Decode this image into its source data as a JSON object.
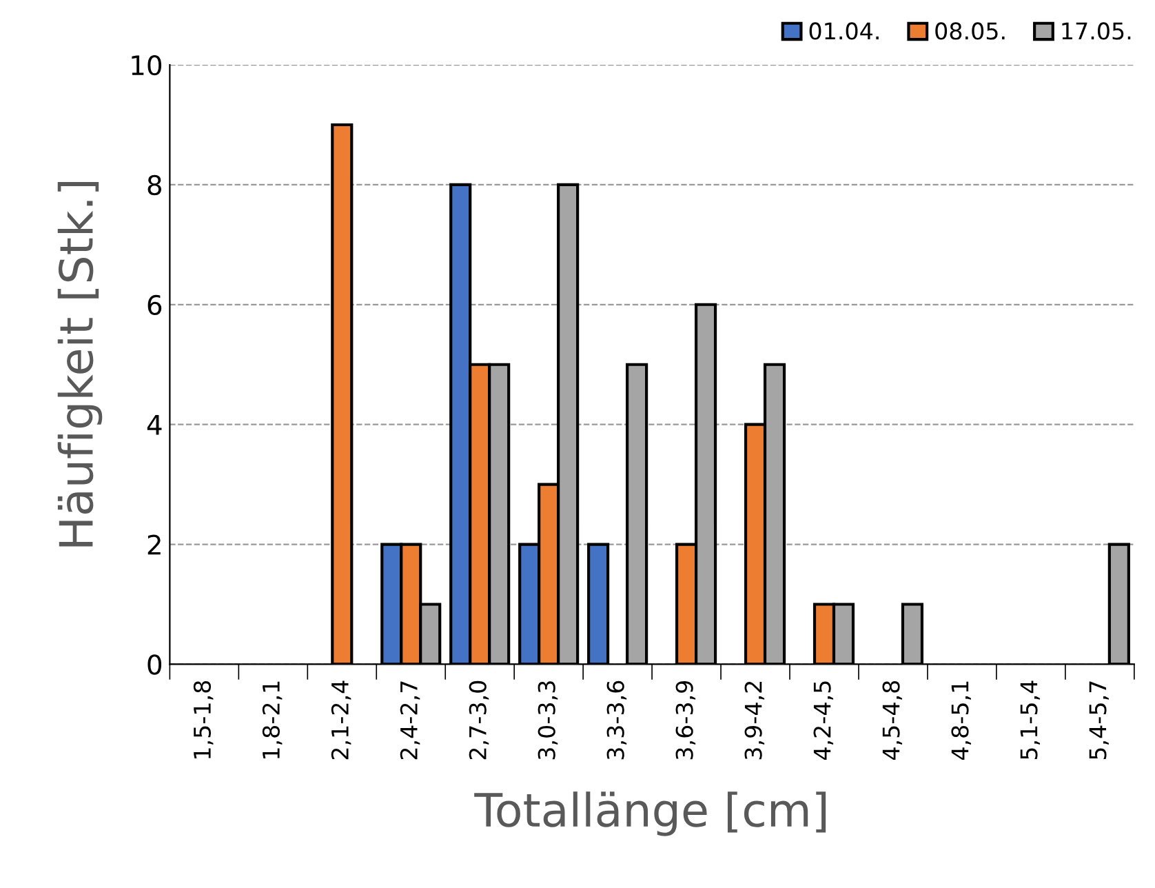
{
  "chart_data": {
    "type": "bar",
    "xlabel": "Totallänge [cm]",
    "ylabel": "Häufigkeit [Stk.]",
    "categories": [
      "1,5-1,8",
      "1,8-2,1",
      "2,1-2,4",
      "2,4-2,7",
      "2,7-3,0",
      "3,0-3,3",
      "3,3-3,6",
      "3,6-3,9",
      "3,9-4,2",
      "4,2-4,5",
      "4,5-4,8",
      "4,8-5,1",
      "5,1-5,4",
      "5,4-5,7"
    ],
    "series": [
      {
        "name": "01.04.",
        "color": "#4472c4",
        "values": [
          0,
          0,
          0,
          2,
          8,
          2,
          2,
          0,
          0,
          0,
          0,
          0,
          0,
          0
        ]
      },
      {
        "name": "08.05.",
        "color": "#ed7d31",
        "values": [
          0,
          0,
          9,
          2,
          5,
          3,
          0,
          2,
          4,
          1,
          0,
          0,
          0,
          0
        ]
      },
      {
        "name": "17.05.",
        "color": "#a5a5a5",
        "values": [
          0,
          0,
          0,
          1,
          5,
          8,
          5,
          6,
          5,
          1,
          1,
          0,
          0,
          2
        ]
      }
    ],
    "ylim": [
      0,
      10
    ],
    "yticks": [
      0,
      2,
      4,
      6,
      8,
      10
    ],
    "grid": "y",
    "legend": "top right"
  }
}
